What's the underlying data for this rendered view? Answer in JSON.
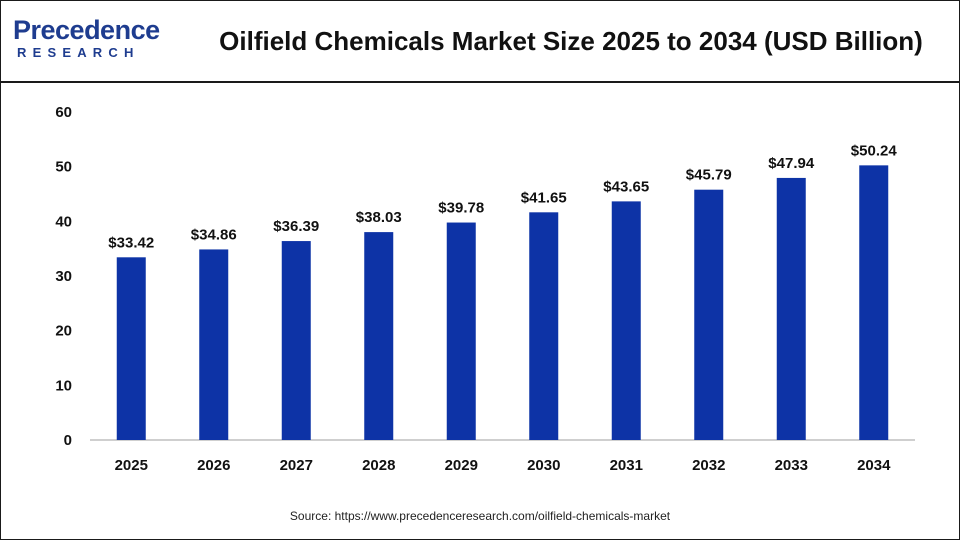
{
  "brand": {
    "name": "Precedence",
    "sub": "RESEARCH"
  },
  "colors": {
    "bar": "#0d33a6",
    "axis": "#bfbfbf",
    "text": "#111111",
    "brand": "#1e3c8f"
  },
  "chart_data": {
    "type": "bar",
    "title": "Oilfield Chemicals Market Size 2025 to 2034 (USD Billion)",
    "categories": [
      "2025",
      "2026",
      "2027",
      "2028",
      "2029",
      "2030",
      "2031",
      "2032",
      "2033",
      "2034"
    ],
    "values": [
      33.42,
      34.86,
      36.39,
      38.03,
      39.78,
      41.65,
      43.65,
      45.79,
      47.94,
      50.24
    ],
    "data_labels": [
      "$33.42",
      "$34.86",
      "$36.39",
      "$38.03",
      "$39.78",
      "$41.65",
      "$43.65",
      "$45.79",
      "$47.94",
      "$50.24"
    ],
    "yticks": [
      0,
      10,
      20,
      30,
      40,
      50,
      60
    ],
    "ylim": [
      0,
      60
    ],
    "xlabel": "",
    "ylabel": "",
    "grid": false,
    "legend": "none"
  },
  "source": "Source: https://www.precedenceresearch.com/oilfield-chemicals-market"
}
